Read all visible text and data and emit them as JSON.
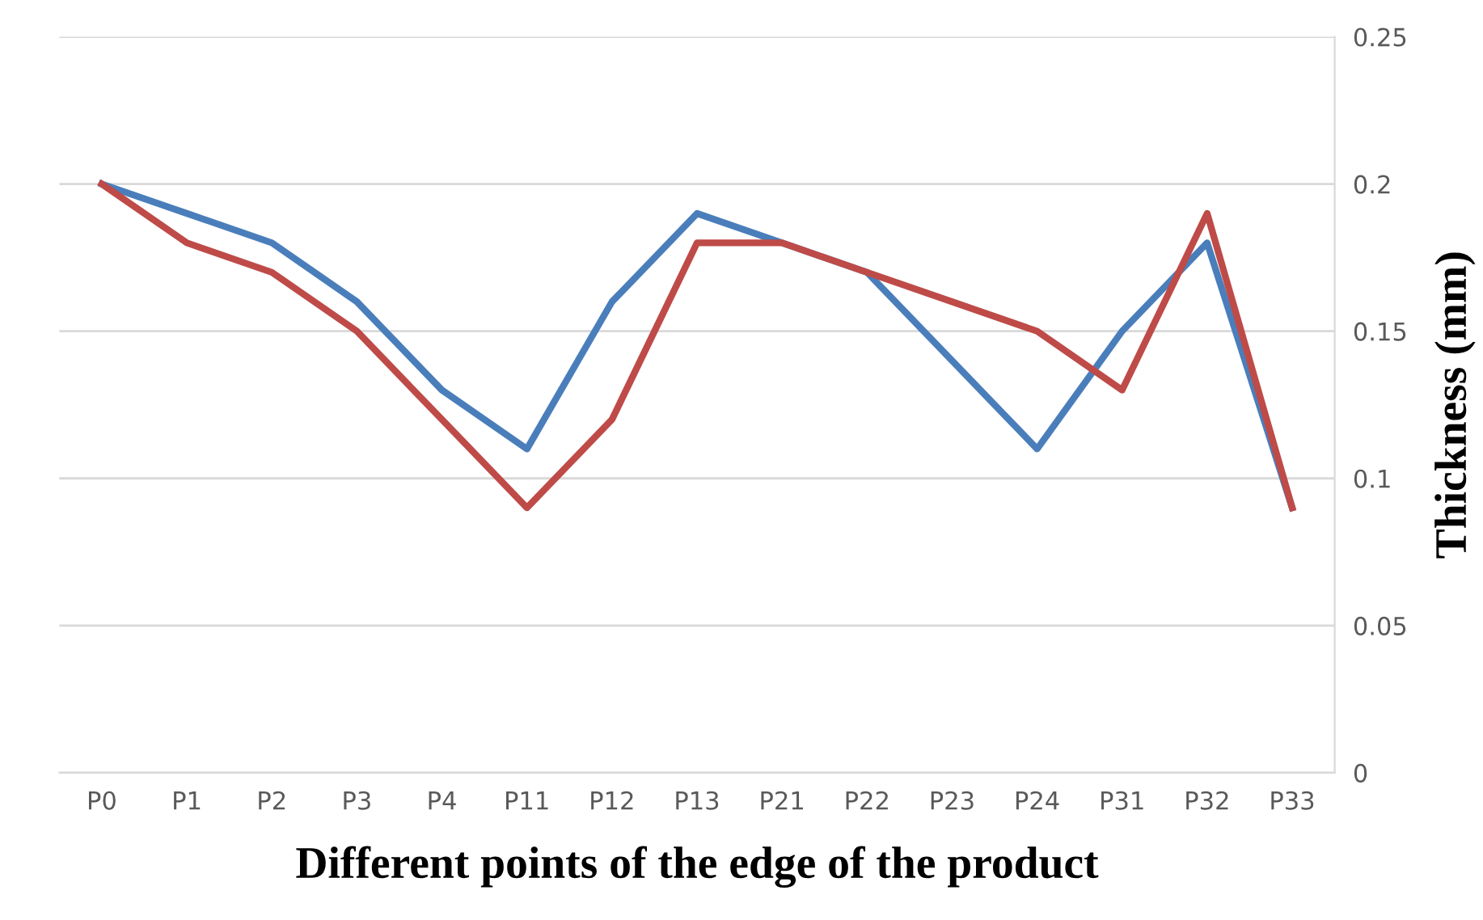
{
  "chart_data": {
    "type": "line",
    "xlabel": "Different points of the edge of the product",
    "ylabel": "Thickness (mm)",
    "categories": [
      "P0",
      "P1",
      "P2",
      "P3",
      "P4",
      "P11",
      "P12",
      "P13",
      "P21",
      "P22",
      "P23",
      "P24",
      "P31",
      "P32",
      "P33"
    ],
    "series": [
      {
        "color": "#4a7ebb",
        "values": [
          0.2,
          0.19,
          0.18,
          0.16,
          0.13,
          0.11,
          0.16,
          0.19,
          0.18,
          0.17,
          0.14,
          0.11,
          0.15,
          0.18,
          0.09
        ]
      },
      {
        "color": "#be4b48",
        "values": [
          0.2,
          0.18,
          0.17,
          0.15,
          0.12,
          0.09,
          0.12,
          0.18,
          0.18,
          0.17,
          0.16,
          0.15,
          0.13,
          0.19,
          0.09
        ]
      }
    ],
    "ylim": [
      0,
      0.25
    ],
    "yticks": [
      0,
      0.05,
      0.1,
      0.15,
      0.2,
      0.25
    ],
    "grid": "y",
    "legend": false,
    "marker": "none",
    "line_style": "solid"
  }
}
